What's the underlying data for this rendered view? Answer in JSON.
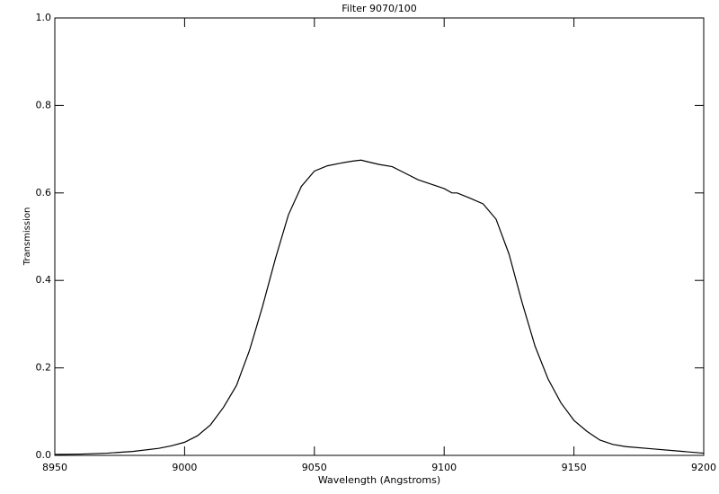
{
  "chart_data": {
    "type": "line",
    "title": "Filter 9070/100",
    "x_label": "Wavelength (Angstroms)",
    "y_label": "Transmission",
    "x": [
      8950,
      8960,
      8970,
      8980,
      8990,
      8995,
      9000,
      9005,
      9010,
      9015,
      9020,
      9025,
      9030,
      9035,
      9040,
      9045,
      9050,
      9055,
      9060,
      9065,
      9068,
      9070,
      9075,
      9080,
      9085,
      9090,
      9095,
      9100,
      9103,
      9105,
      9110,
      9115,
      9120,
      9125,
      9130,
      9135,
      9140,
      9145,
      9150,
      9155,
      9160,
      9165,
      9170,
      9180,
      9190,
      9200
    ],
    "series": [
      {
        "color": "#000000",
        "values": [
          0.002,
          0.003,
          0.005,
          0.009,
          0.016,
          0.022,
          0.03,
          0.045,
          0.07,
          0.11,
          0.16,
          0.24,
          0.34,
          0.45,
          0.55,
          0.615,
          0.65,
          0.662,
          0.668,
          0.673,
          0.675,
          0.672,
          0.665,
          0.66,
          0.645,
          0.63,
          0.62,
          0.61,
          0.6,
          0.6,
          0.588,
          0.575,
          0.54,
          0.46,
          0.35,
          0.25,
          0.175,
          0.12,
          0.08,
          0.055,
          0.035,
          0.025,
          0.02,
          0.015,
          0.01,
          0.005
        ]
      }
    ],
    "xlim": [
      8950,
      9200
    ],
    "xticks": [
      8950,
      9000,
      9050,
      9100,
      9150,
      9200
    ],
    "ylim": [
      0,
      1
    ],
    "yticks": [
      {
        "value": 0,
        "label": "0.0"
      },
      0.2,
      0.4,
      0.6,
      0.8,
      {
        "value": 1,
        "label": "1.0"
      }
    ]
  }
}
